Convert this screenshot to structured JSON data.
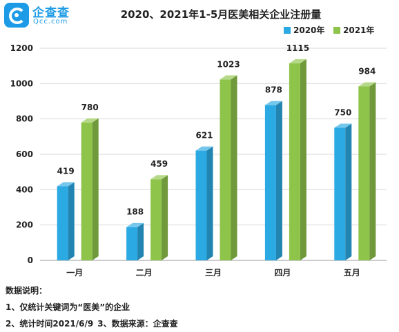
{
  "brand": {
    "name": "企查查",
    "domain": "Qcc.com",
    "color": "#1d9be6"
  },
  "chart_data": {
    "type": "bar",
    "title": "2020、2021年1-5月医美相关企业注册量",
    "categories": [
      "一月",
      "二月",
      "三月",
      "四月",
      "五月"
    ],
    "series": [
      {
        "name": "2020年",
        "values": [
          419,
          188,
          621,
          878,
          750
        ],
        "color": "#2ba9e2"
      },
      {
        "name": "2021年",
        "values": [
          780,
          459,
          1023,
          1115,
          984
        ],
        "color": "#8ec44a"
      }
    ],
    "ylim": [
      0,
      1200
    ],
    "yticks": [
      0,
      200,
      400,
      600,
      800,
      1000,
      1200
    ],
    "grid": true,
    "legend": "top-right",
    "xlabel": "",
    "ylabel": ""
  },
  "notes": {
    "heading": "数据说明：",
    "line1": "1、仅统计关键词为“医美”的企业",
    "line2a": "2、统计时间2021/6/9",
    "line2b": "3、数据来源：企查查"
  }
}
